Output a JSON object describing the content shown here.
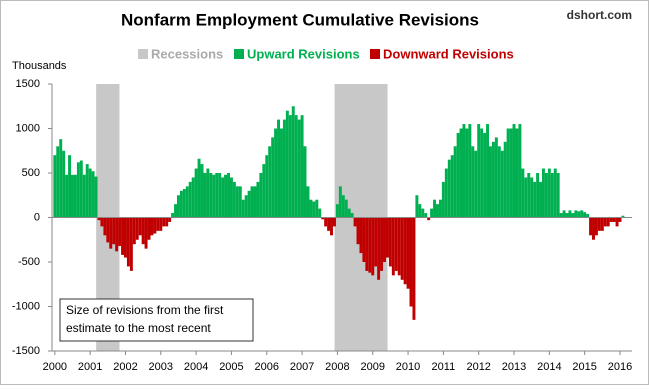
{
  "chart_data": {
    "type": "bar",
    "title": "Nonfarm Employment Cumulative Revisions",
    "source": "dshort.com",
    "y_label": "Thousands",
    "annotation": [
      "Size of revisions from the first",
      "estimate to the most recent"
    ],
    "recession_name": "Recessions",
    "recession_color": "#c8c8c8",
    "recessions": [
      [
        2001.17,
        2001.83
      ],
      [
        2007.92,
        2009.42
      ]
    ],
    "up_name": "Upward Revisions",
    "up_color": "#00b050",
    "down_name": "Downward Revisions",
    "down_color": "#c00000",
    "xlim": [
      1999.92,
      2016.34
    ],
    "xticks": [
      2000,
      2001,
      2002,
      2003,
      2004,
      2005,
      2006,
      2007,
      2008,
      2009,
      2010,
      2011,
      2012,
      2013,
      2014,
      2015,
      2016
    ],
    "ylim": [
      -1500,
      1500
    ],
    "yticks": [
      1500,
      1000,
      500,
      0,
      -500,
      -1000,
      -1500
    ],
    "grid": false,
    "x": [
      2000,
      2000.083,
      2000.167,
      2000.25,
      2000.333,
      2000.417,
      2000.5,
      2000.583,
      2000.667,
      2000.75,
      2000.833,
      2000.917,
      2001,
      2001.083,
      2001.167,
      2001.25,
      2001.333,
      2001.417,
      2001.5,
      2001.583,
      2001.667,
      2001.75,
      2001.833,
      2001.917,
      2002,
      2002.083,
      2002.167,
      2002.25,
      2002.333,
      2002.417,
      2002.5,
      2002.583,
      2002.667,
      2002.75,
      2002.833,
      2002.917,
      2003,
      2003.083,
      2003.167,
      2003.25,
      2003.333,
      2003.417,
      2003.5,
      2003.583,
      2003.667,
      2003.75,
      2003.833,
      2003.917,
      2004,
      2004.083,
      2004.167,
      2004.25,
      2004.333,
      2004.417,
      2004.5,
      2004.583,
      2004.667,
      2004.75,
      2004.833,
      2004.917,
      2005,
      2005.083,
      2005.167,
      2005.25,
      2005.333,
      2005.417,
      2005.5,
      2005.583,
      2005.667,
      2005.75,
      2005.833,
      2005.917,
      2006,
      2006.083,
      2006.167,
      2006.25,
      2006.333,
      2006.417,
      2006.5,
      2006.583,
      2006.667,
      2006.75,
      2006.833,
      2006.917,
      2007,
      2007.083,
      2007.167,
      2007.25,
      2007.333,
      2007.417,
      2007.5,
      2007.583,
      2007.667,
      2007.75,
      2007.833,
      2007.917,
      2008,
      2008.083,
      2008.167,
      2008.25,
      2008.333,
      2008.417,
      2008.5,
      2008.583,
      2008.667,
      2008.75,
      2008.833,
      2008.917,
      2009,
      2009.083,
      2009.167,
      2009.25,
      2009.333,
      2009.417,
      2009.5,
      2009.583,
      2009.667,
      2009.75,
      2009.833,
      2009.917,
      2010,
      2010.083,
      2010.167,
      2010.25,
      2010.333,
      2010.417,
      2010.5,
      2010.583,
      2010.667,
      2010.75,
      2010.833,
      2010.917,
      2011,
      2011.083,
      2011.167,
      2011.25,
      2011.333,
      2011.417,
      2011.5,
      2011.583,
      2011.667,
      2011.75,
      2011.833,
      2011.917,
      2012,
      2012.083,
      2012.167,
      2012.25,
      2012.333,
      2012.417,
      2012.5,
      2012.583,
      2012.667,
      2012.75,
      2012.833,
      2012.917,
      2013,
      2013.083,
      2013.167,
      2013.25,
      2013.333,
      2013.417,
      2013.5,
      2013.583,
      2013.667,
      2013.75,
      2013.833,
      2013.917,
      2014,
      2014.083,
      2014.167,
      2014.25,
      2014.333,
      2014.417,
      2014.5,
      2014.583,
      2014.667,
      2014.75,
      2014.833,
      2014.917,
      2015,
      2015.083,
      2015.167,
      2015.25,
      2015.333,
      2015.417,
      2015.5,
      2015.583,
      2015.667,
      2015.75,
      2015.833,
      2015.917,
      2016,
      2016.083
    ],
    "values": [
      700,
      800,
      880,
      750,
      480,
      700,
      480,
      480,
      620,
      640,
      480,
      600,
      550,
      520,
      460,
      -30,
      -100,
      -200,
      -280,
      -350,
      -300,
      -380,
      -320,
      -420,
      -450,
      -550,
      -600,
      -300,
      -250,
      -200,
      -300,
      -350,
      -250,
      -200,
      -180,
      -150,
      -150,
      -100,
      -100,
      -50,
      50,
      150,
      250,
      300,
      320,
      350,
      400,
      450,
      550,
      660,
      600,
      500,
      550,
      500,
      480,
      500,
      500,
      450,
      480,
      500,
      450,
      400,
      350,
      350,
      200,
      250,
      300,
      350,
      350,
      400,
      500,
      600,
      700,
      800,
      900,
      1000,
      1100,
      1000,
      1100,
      1200,
      1150,
      1250,
      1150,
      1100,
      1150,
      800,
      350,
      200,
      180,
      200,
      100,
      -20,
      -100,
      -150,
      -200,
      -100,
      150,
      350,
      250,
      200,
      100,
      50,
      -100,
      -300,
      -400,
      -500,
      -600,
      -620,
      -650,
      -550,
      -700,
      -600,
      -500,
      -450,
      -550,
      -650,
      -600,
      -650,
      -700,
      -750,
      -800,
      -1000,
      -1150,
      250,
      150,
      100,
      50,
      -30,
      100,
      200,
      150,
      200,
      400,
      550,
      650,
      700,
      800,
      950,
      1000,
      1050,
      1000,
      1050,
      800,
      750,
      1050,
      1000,
      950,
      1050,
      800,
      850,
      900,
      800,
      750,
      850,
      1000,
      1000,
      1050,
      1000,
      1050,
      550,
      450,
      500,
      450,
      400,
      500,
      400,
      550,
      500,
      550,
      500,
      550,
      500,
      50,
      80,
      50,
      80,
      50,
      80,
      70,
      80,
      60,
      40,
      -200,
      -250,
      -200,
      -150,
      -150,
      -100,
      -100,
      -50,
      -50,
      -100,
      -50,
      20
    ]
  }
}
